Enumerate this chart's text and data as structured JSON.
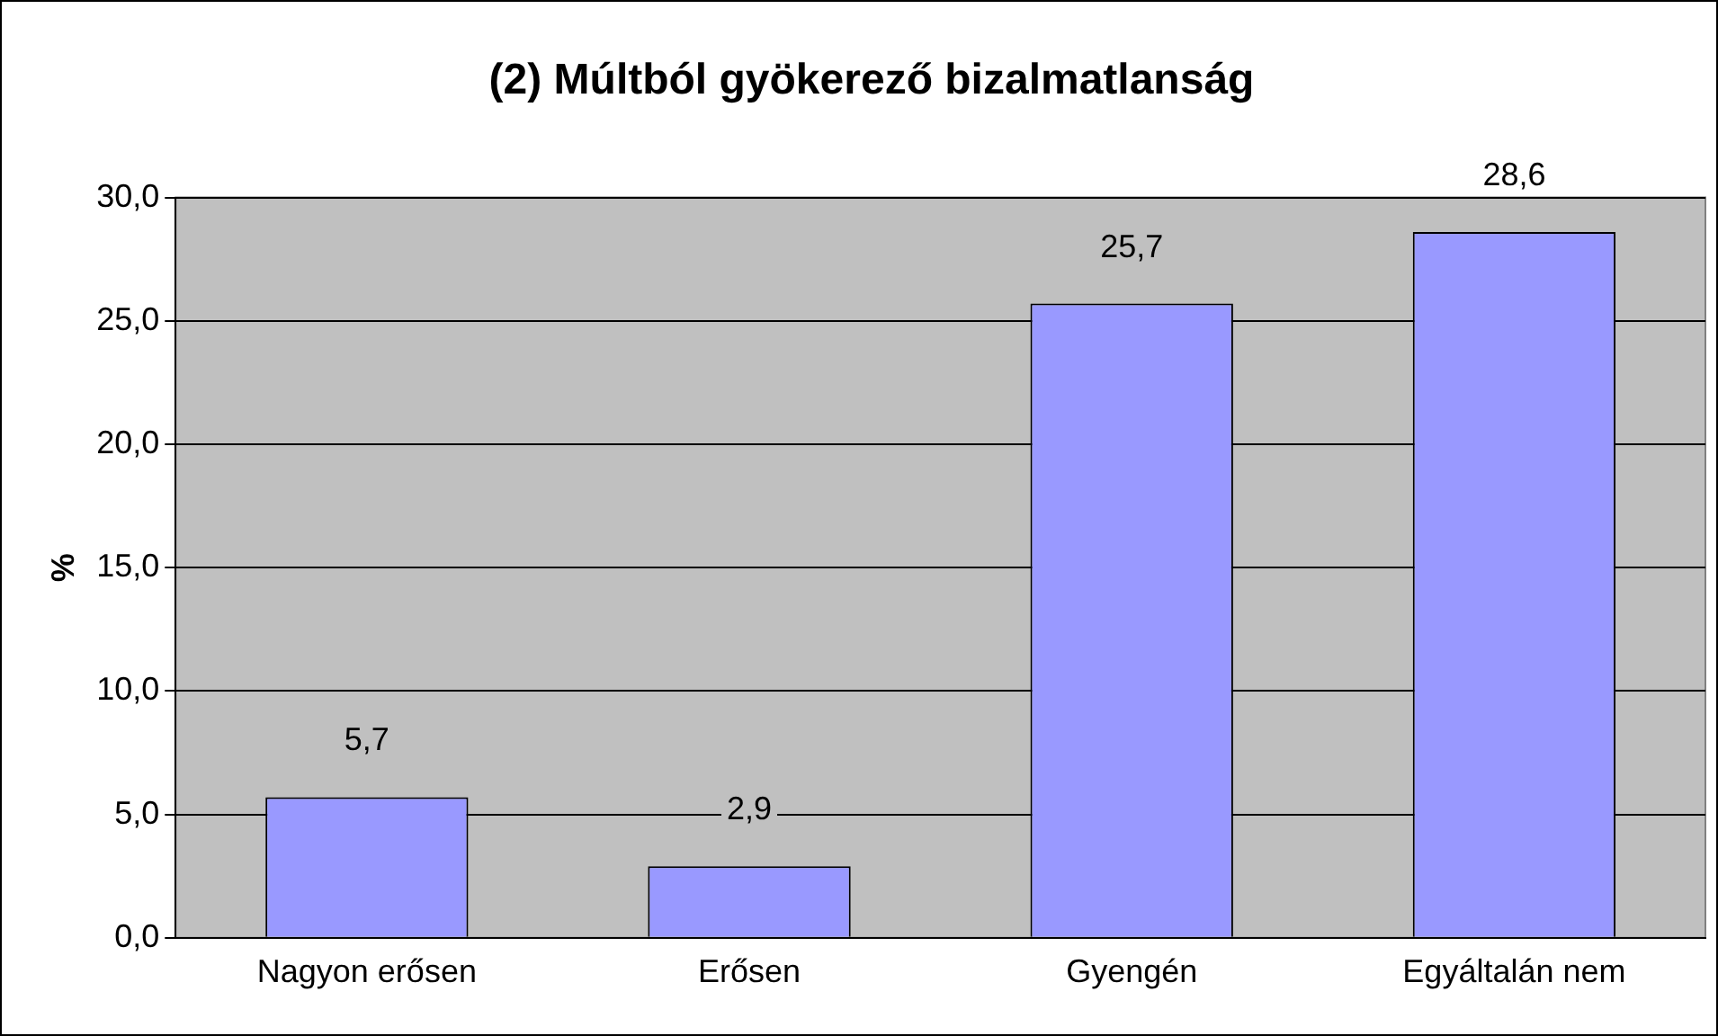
{
  "chart_data": {
    "type": "bar",
    "title": "(2) Múltból gyökerező bizalmatlanság",
    "ylabel": "%",
    "categories": [
      "Nagyon erősen",
      "Erősen",
      "Gyengén",
      "Egyáltalán nem"
    ],
    "values": [
      5.7,
      2.9,
      25.7,
      28.6
    ],
    "color": "#9999ff",
    "value_labels": [
      "5,7",
      "2,9",
      "25,7",
      "28,6"
    ],
    "ylim": [
      0,
      30
    ],
    "yticks": [
      {
        "value": 0,
        "label": "0,0"
      },
      {
        "value": 5,
        "label": "5,0"
      },
      {
        "value": 10,
        "label": "10,0"
      },
      {
        "value": 15,
        "label": "15,0"
      },
      {
        "value": 20,
        "label": "20,0"
      },
      {
        "value": 25,
        "label": "25,0"
      },
      {
        "value": 30,
        "label": "30,0"
      }
    ],
    "grid": "y",
    "legend": false
  }
}
